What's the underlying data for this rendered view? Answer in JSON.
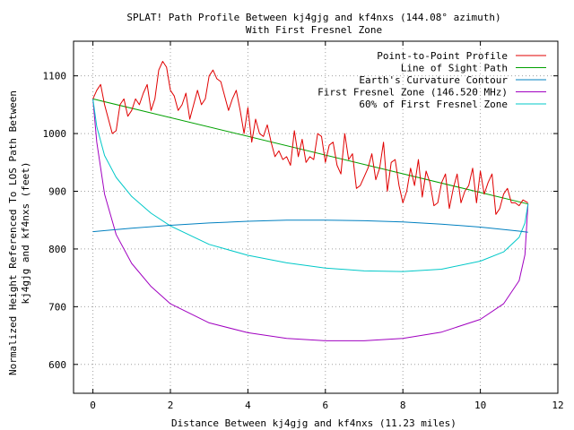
{
  "chart_data": {
    "type": "line",
    "title": "SPLAT! Path Profile Between kj4gjg and kf4nxs (144.08° azimuth)",
    "subtitle": "With First Fresnel Zone",
    "xlabel": "Distance Between kj4gjg and kf4nxs (11.23 miles)",
    "ylabel_lines": [
      "Normalized Height Referenced To LOS Path Between",
      "kj4gjg and kf4nxs (feet)"
    ],
    "xlim": [
      -0.5,
      12
    ],
    "ylim": [
      550,
      1160
    ],
    "xticks": [
      0,
      2,
      4,
      6,
      8,
      10,
      12
    ],
    "xtick_labels": [
      "0",
      "2",
      "4",
      "6",
      "8",
      "10",
      "12"
    ],
    "yticks": [
      600,
      700,
      800,
      900,
      1000,
      1100
    ],
    "ytick_labels": [
      "600",
      "700",
      "800",
      "900",
      "1000",
      "1100"
    ],
    "grid": true,
    "legend_position": "top-right",
    "series": [
      {
        "name": "Point-to-Point Profile",
        "color": "#e00000",
        "x": [
          0,
          0.1,
          0.2,
          0.3,
          0.4,
          0.5,
          0.6,
          0.7,
          0.8,
          0.9,
          1.0,
          1.1,
          1.2,
          1.3,
          1.4,
          1.5,
          1.6,
          1.7,
          1.8,
          1.9,
          2.0,
          2.1,
          2.2,
          2.3,
          2.4,
          2.5,
          2.6,
          2.7,
          2.8,
          2.9,
          3.0,
          3.1,
          3.2,
          3.3,
          3.4,
          3.5,
          3.6,
          3.7,
          3.8,
          3.9,
          4.0,
          4.1,
          4.2,
          4.3,
          4.4,
          4.5,
          4.6,
          4.7,
          4.8,
          4.9,
          5.0,
          5.1,
          5.2,
          5.3,
          5.4,
          5.5,
          5.6,
          5.7,
          5.8,
          5.9,
          6.0,
          6.1,
          6.2,
          6.3,
          6.4,
          6.5,
          6.6,
          6.7,
          6.8,
          6.9,
          7.0,
          7.1,
          7.2,
          7.3,
          7.4,
          7.5,
          7.6,
          7.7,
          7.8,
          7.9,
          8.0,
          8.1,
          8.2,
          8.3,
          8.4,
          8.5,
          8.6,
          8.7,
          8.8,
          8.9,
          9.0,
          9.1,
          9.2,
          9.3,
          9.4,
          9.5,
          9.6,
          9.7,
          9.8,
          9.9,
          10.0,
          10.1,
          10.2,
          10.3,
          10.4,
          10.5,
          10.6,
          10.7,
          10.8,
          10.9,
          11.0,
          11.1,
          11.23
        ],
        "values": [
          1060,
          1075,
          1085,
          1050,
          1025,
          1000,
          1005,
          1050,
          1060,
          1030,
          1040,
          1060,
          1050,
          1070,
          1085,
          1040,
          1060,
          1110,
          1125,
          1115,
          1075,
          1065,
          1040,
          1050,
          1070,
          1025,
          1050,
          1075,
          1050,
          1060,
          1100,
          1110,
          1095,
          1090,
          1065,
          1040,
          1060,
          1075,
          1040,
          1000,
          1045,
          985,
          1025,
          1000,
          995,
          1015,
          985,
          960,
          970,
          955,
          960,
          945,
          1005,
          960,
          990,
          950,
          960,
          955,
          1000,
          995,
          950,
          980,
          985,
          945,
          930,
          1000,
          955,
          965,
          905,
          910,
          925,
          940,
          965,
          920,
          940,
          985,
          900,
          950,
          955,
          910,
          880,
          900,
          940,
          910,
          955,
          890,
          935,
          915,
          875,
          880,
          915,
          930,
          870,
          905,
          930,
          880,
          900,
          910,
          940,
          880,
          935,
          895,
          915,
          930,
          860,
          870,
          895,
          905,
          880,
          880,
          875,
          885,
          880
        ]
      },
      {
        "name": "Line of Sight Path",
        "color": "#00a000",
        "x": [
          0,
          11.23
        ],
        "values": [
          1060,
          878
        ]
      },
      {
        "name": "Earth's Curvature Contour",
        "color": "#0080c0",
        "x": [
          0,
          1,
          2,
          3,
          4,
          5,
          5.6,
          6,
          7,
          8,
          9,
          10,
          11,
          11.23
        ],
        "values": [
          830,
          836,
          841,
          845,
          848,
          850,
          850,
          850,
          849,
          847,
          843,
          838,
          831,
          829
        ]
      },
      {
        "name": "First Fresnel Zone (146.520 MHz)",
        "color": "#a000c0",
        "x": [
          0,
          0.1,
          0.3,
          0.6,
          1,
          1.5,
          2,
          3,
          4,
          5,
          6,
          7,
          8,
          9,
          10,
          10.6,
          11,
          11.15,
          11.23
        ],
        "values": [
          1060,
          985,
          895,
          825,
          775,
          735,
          705,
          672,
          655,
          645,
          641,
          641,
          645,
          656,
          678,
          705,
          745,
          790,
          878
        ]
      },
      {
        "name": "60% of First Fresnel Zone",
        "color": "#00c8c8",
        "x": [
          0,
          0.1,
          0.3,
          0.6,
          1,
          1.5,
          2,
          3,
          4,
          5,
          6,
          7,
          8,
          9,
          10,
          10.6,
          11,
          11.15,
          11.23
        ],
        "values": [
          1060,
          1012,
          962,
          924,
          891,
          862,
          840,
          808,
          789,
          776,
          767,
          762,
          761,
          765,
          779,
          795,
          820,
          845,
          878
        ]
      }
    ]
  }
}
